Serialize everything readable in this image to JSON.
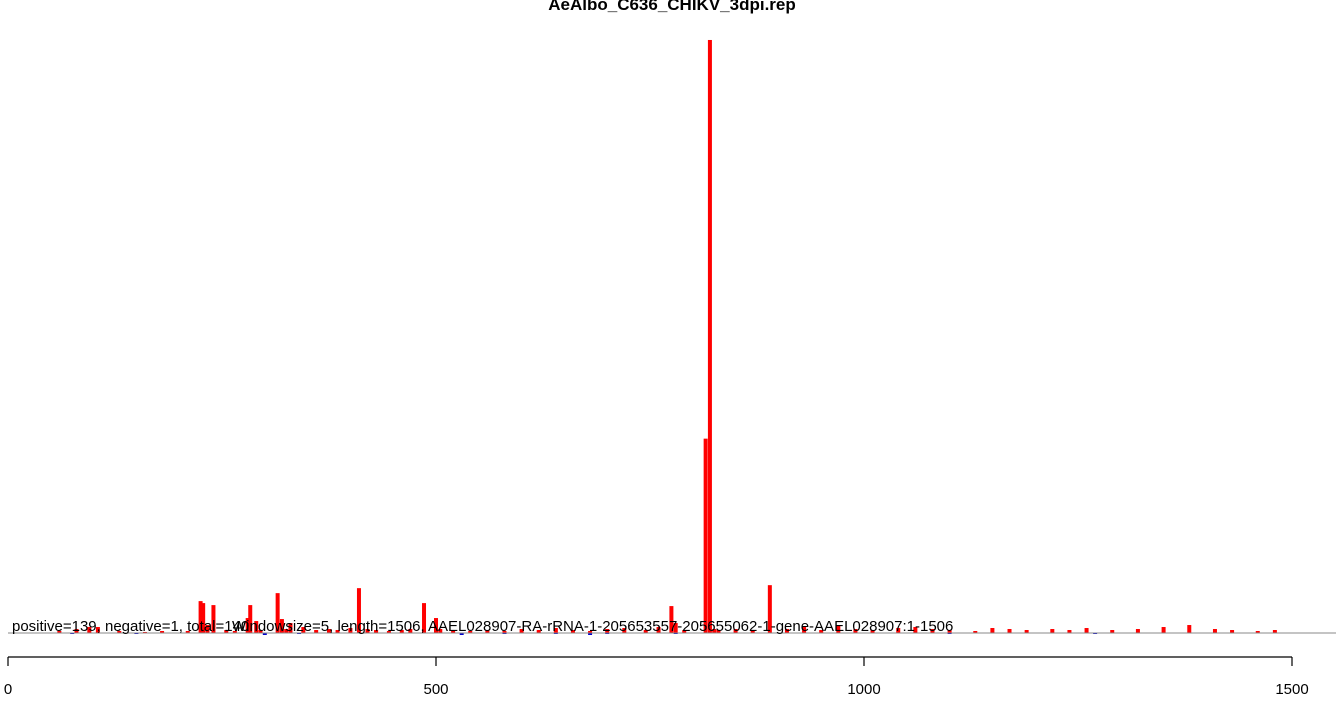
{
  "chart_data": {
    "type": "bar",
    "title": "AeAlbo_C636_CHIKV_3dpi.rep",
    "xlabel": "",
    "ylabel": "",
    "xlim": [
      0,
      1506
    ],
    "x_ticks": [
      0,
      500,
      1000,
      1500
    ],
    "x_tick_labels": [
      "0",
      "500",
      "1000",
      "1500"
    ],
    "annotation": "positive=139, negative=1, total=140",
    "annotation2": "Windowsize=5, length=1506, AAEL028907-RA-rRNA-1-205653557-205655062-1-gene-AAEL028907:1-1506",
    "positive_color": "#ff0000",
    "negative_color": "#0000cc",
    "ylim": [
      -20,
      600
    ],
    "positive": {
      "x": [
        60,
        80,
        95,
        105,
        130,
        160,
        180,
        210,
        225,
        228,
        233,
        240,
        255,
        265,
        280,
        283,
        290,
        295,
        315,
        320,
        325,
        330,
        345,
        360,
        375,
        385,
        400,
        410,
        420,
        430,
        445,
        460,
        470,
        486,
        500,
        505,
        520,
        540,
        560,
        580,
        600,
        620,
        640,
        660,
        680,
        700,
        720,
        745,
        760,
        775,
        780,
        790,
        815,
        820,
        825,
        830,
        850,
        870,
        890,
        910,
        930,
        950,
        970,
        990,
        1010,
        1040,
        1060,
        1080,
        1100,
        1130,
        1150,
        1170,
        1190,
        1220,
        1240,
        1260,
        1290,
        1320,
        1350,
        1380,
        1410,
        1430,
        1460,
        1480
      ],
      "y": [
        2,
        4,
        6,
        6,
        2,
        1,
        2,
        2,
        32,
        30,
        8,
        28,
        3,
        2,
        15,
        28,
        12,
        3,
        40,
        14,
        4,
        10,
        6,
        3,
        4,
        3,
        5,
        45,
        4,
        3,
        2,
        3,
        4,
        30,
        15,
        4,
        3,
        2,
        3,
        2,
        4,
        3,
        5,
        3,
        2,
        4,
        5,
        3,
        6,
        27,
        10,
        3,
        195,
        595,
        4,
        3,
        4,
        3,
        48,
        4,
        6,
        3,
        8,
        4,
        3,
        5,
        6,
        4,
        3,
        2,
        5,
        4,
        3,
        4,
        3,
        5,
        3,
        4,
        6,
        8,
        4,
        3,
        2,
        3
      ]
    },
    "negative": {
      "x": [
        75,
        150,
        300,
        340,
        530,
        580,
        640,
        680,
        700,
        780,
        1100,
        1270
      ],
      "y": [
        -1,
        -1,
        -2,
        -1,
        -2,
        -1,
        -1,
        -2,
        -1,
        -1,
        -1,
        -1
      ]
    }
  }
}
